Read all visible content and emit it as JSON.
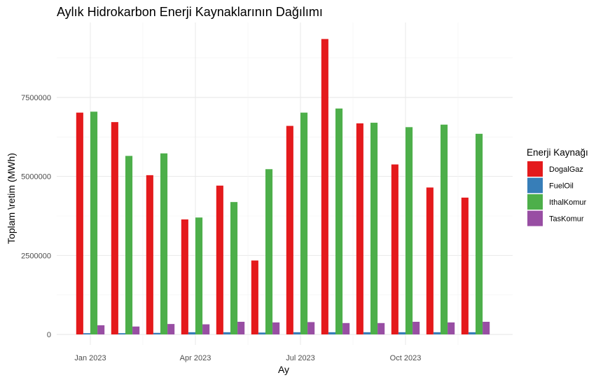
{
  "chart_data": {
    "type": "bar",
    "title": "Aylık Hidrokarbon Enerji Kaynaklarının Dağılımı",
    "xlabel": "Ay",
    "ylabel": "Toplam \\retim (MWh)",
    "x": [
      "2023-01",
      "2023-02",
      "2023-03",
      "2023-04",
      "2023-05",
      "2023-06",
      "2023-07",
      "2023-08",
      "2023-09",
      "2023-10",
      "2023-11",
      "2023-12"
    ],
    "x_tick_labels": [
      {
        "month": "2023-01",
        "label": "Jan 2023"
      },
      {
        "month": "2023-04",
        "label": "Apr 2023"
      },
      {
        "month": "2023-07",
        "label": "Jul 2023"
      },
      {
        "month": "2023-10",
        "label": "Oct 2023"
      }
    ],
    "y_ticks": [
      {
        "value": 0,
        "label": "0"
      },
      {
        "value": 2500000,
        "label": "2500000"
      },
      {
        "value": 5000000,
        "label": "5000000"
      },
      {
        "value": 7500000,
        "label": "7500000"
      }
    ],
    "ylim": [
      -200000,
      9500000
    ],
    "grid": true,
    "legend_title": "Enerji Kaynağı",
    "legend_position": "right",
    "series": [
      {
        "name": "DogalGaz",
        "color": "#E41A1C",
        "values": [
          7020000,
          6720000,
          5040000,
          3640000,
          4710000,
          2340000,
          6600000,
          9350000,
          6680000,
          5380000,
          4650000,
          4330000
        ]
      },
      {
        "name": "FuelOil",
        "color": "#377EB8",
        "values": [
          40000,
          40000,
          50000,
          70000,
          70000,
          60000,
          70000,
          70000,
          70000,
          70000,
          70000,
          70000
        ]
      },
      {
        "name": "IthalKomur",
        "color": "#4DAF4A",
        "values": [
          7050000,
          5650000,
          5730000,
          3700000,
          4190000,
          5230000,
          7020000,
          7150000,
          6700000,
          6560000,
          6640000,
          6350000
        ]
      },
      {
        "name": "TasKomur",
        "color": "#984EA3",
        "values": [
          290000,
          250000,
          330000,
          320000,
          400000,
          380000,
          390000,
          360000,
          360000,
          400000,
          380000,
          400000
        ]
      }
    ]
  }
}
